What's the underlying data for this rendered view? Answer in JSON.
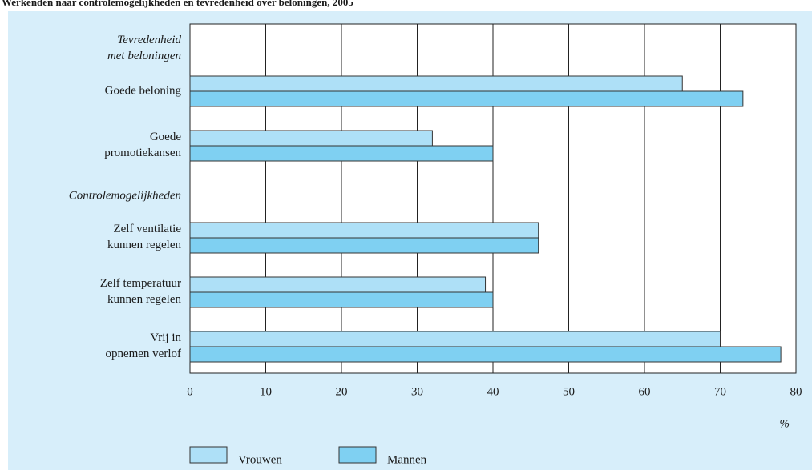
{
  "chart_data": {
    "type": "barh",
    "title": "Werkenden naar controlemogelijkheden en tevredenheid over beloningen, 2005",
    "categories": [
      "Tevredenheid\nmet beloningen",
      "Goede beloning",
      "Goede\npromotiekansen",
      "Controlemogelijkheden",
      "Zelf ventilatie\nkunnen regelen",
      "Zelf temperatuur\nkunnen regelen",
      "Vrij in\nopnemen verlof"
    ],
    "series": [
      {
        "name": "Vrouwen",
        "color": "#aee0f7",
        "values": [
          null,
          65,
          32,
          null,
          46,
          39,
          70
        ]
      },
      {
        "name": "Mannen",
        "color": "#7fd0f2",
        "values": [
          null,
          73,
          40,
          null,
          46,
          40,
          78
        ]
      }
    ],
    "xlim": [
      0,
      80
    ],
    "xticks": [
      0,
      10,
      20,
      30,
      40,
      50,
      60,
      70,
      80
    ],
    "xlabel": "%",
    "grid": true,
    "legend": "bottom"
  }
}
